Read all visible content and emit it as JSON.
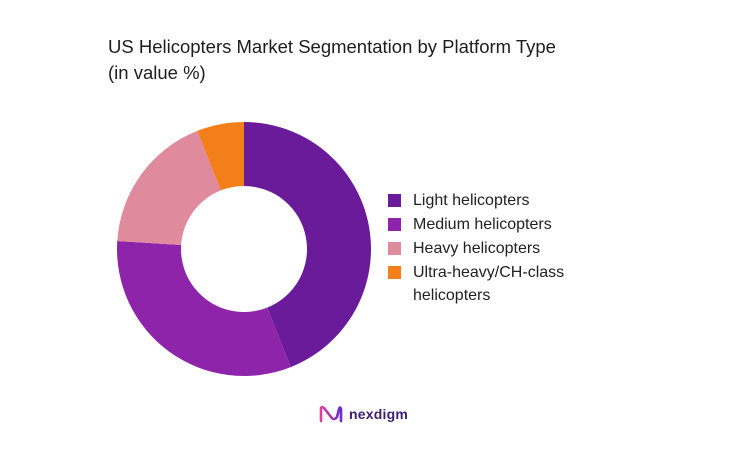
{
  "chart_data": {
    "type": "pie",
    "title": "US Helicopters Market Segmentation by Platform Type",
    "subtitle": "(in value %)",
    "categories": [
      "Light helicopters",
      "Medium helicopters",
      "Heavy helicopters",
      "Ultra-heavy/CH-class helicopters"
    ],
    "values": [
      44,
      32,
      18,
      6
    ],
    "colors": [
      "#6a1b9a",
      "#8e24aa",
      "#e08a9e",
      "#f37f1b"
    ],
    "legend_position": "right",
    "donut": true
  },
  "logo": {
    "text": "nexdigm",
    "icon": "nexdigm-logo-icon"
  }
}
